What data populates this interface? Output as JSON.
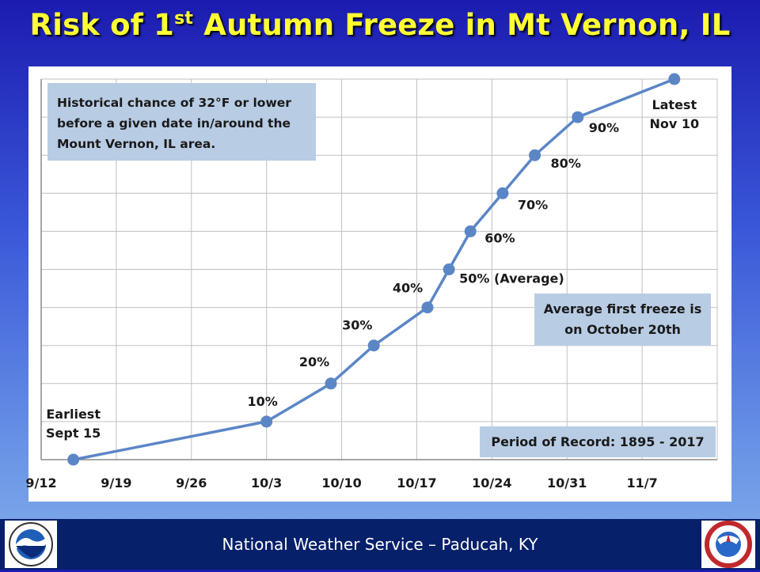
{
  "title": {
    "main": "Risk of 1",
    "sup": "st",
    "rest": " Autumn Freeze in Mt Vernon, IL"
  },
  "note": {
    "line1": "Historical chance of 32°F or lower",
    "line2": "before a given date in/around the",
    "line3": "Mount Vernon, IL area."
  },
  "average_note": {
    "line1": "Average first freeze is",
    "line2": "on October 20th"
  },
  "record_note": "Period of Record: 1895 - 2017",
  "footer": "National Weather Service – Paducah, KY",
  "logos": {
    "left": "NOAA",
    "right": "National Weather Service"
  },
  "colors": {
    "line": "#5b86c6",
    "accent": "#ffff33",
    "grid": "#c0c0c0",
    "box": "#b8cce4",
    "footer": "#06206a"
  },
  "chart_data": {
    "type": "line",
    "title": "Risk of 1st Autumn Freeze in Mt Vernon, IL",
    "xlabel": "",
    "ylabel": "",
    "x_ticks": [
      "9/12",
      "9/19",
      "9/26",
      "10/3",
      "10/10",
      "10/17",
      "10/24",
      "10/31",
      "11/7"
    ],
    "x_tick_dates": [
      "09-12",
      "09-19",
      "09-26",
      "10-03",
      "10-10",
      "10-17",
      "10-24",
      "10-31",
      "11-07"
    ],
    "xlim": [
      "09-12",
      "11-14"
    ],
    "ylim": [
      0,
      100
    ],
    "y_tick_labels_shown": false,
    "grid": true,
    "series": [
      {
        "x": [
          "09-15",
          "10-03",
          "10-09",
          "10-13",
          "10-18",
          "10-20",
          "10-22",
          "10-25",
          "10-28",
          "11-01",
          "11-10"
        ],
        "y": [
          0,
          10,
          20,
          30,
          40,
          50,
          60,
          70,
          80,
          90,
          100
        ],
        "labels": [
          "Earliest\nSept 15",
          "10%",
          "20%",
          "30%",
          "40%",
          "50% (Average)",
          "60%",
          "70%",
          "80%",
          "90%",
          "Latest\nNov 10"
        ]
      }
    ]
  }
}
